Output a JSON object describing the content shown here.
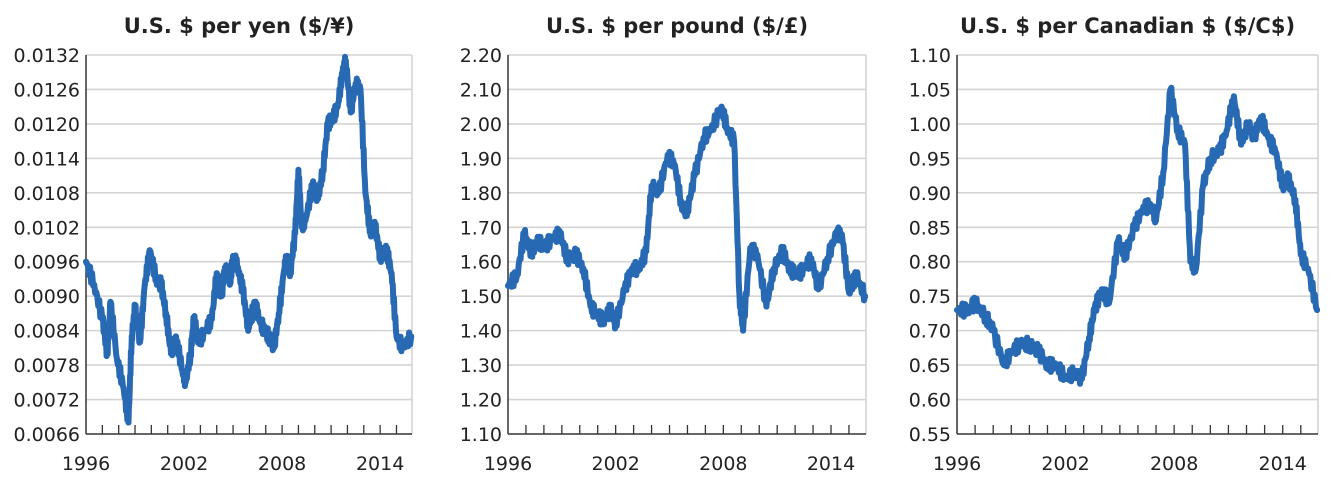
{
  "colors": {
    "line": "#2869b4",
    "grid": "#d4d4d4",
    "axis": "#333333"
  },
  "chart_data": [
    {
      "type": "line",
      "title": "U.S. $ per yen ($/¥)",
      "xlabel": "",
      "ylabel": "",
      "xlim": [
        1996,
        2015.95
      ],
      "ylim": [
        0.0066,
        0.0132
      ],
      "yticks": [
        "0.0066",
        "0.0072",
        "0.0078",
        "0.0084",
        "0.0090",
        "0.0096",
        "0.0102",
        "0.0108",
        "0.0114",
        "0.0120",
        "0.0126",
        "0.0132"
      ],
      "xticks": [
        "1996",
        "2002",
        "2008",
        "2014"
      ],
      "grid": true,
      "x": [
        1996.0,
        1996.5,
        1997.0,
        1997.3,
        1997.5,
        1997.9,
        1998.3,
        1998.6,
        1998.8,
        1999.0,
        1999.3,
        1999.6,
        1999.9,
        2000.3,
        2000.6,
        2000.9,
        2001.2,
        2001.5,
        2001.9,
        2002.1,
        2002.4,
        2002.6,
        2002.9,
        2003.3,
        2003.7,
        2004.0,
        2004.3,
        2004.5,
        2004.8,
        2005.0,
        2005.3,
        2005.6,
        2005.9,
        2006.1,
        2006.3,
        2006.6,
        2006.9,
        2007.2,
        2007.5,
        2007.8,
        2008.1,
        2008.3,
        2008.5,
        2008.8,
        2009.0,
        2009.2,
        2009.5,
        2009.9,
        2010.2,
        2010.5,
        2010.8,
        2011.1,
        2011.4,
        2011.7,
        2011.9,
        2012.2,
        2012.5,
        2012.8,
        2013.1,
        2013.4,
        2013.7,
        2014.0,
        2014.4,
        2014.7,
        2015.0,
        2015.4,
        2015.9
      ],
      "values": [
        0.0096,
        0.0092,
        0.0086,
        0.008,
        0.0089,
        0.0079,
        0.0074,
        0.0068,
        0.0083,
        0.0088,
        0.0082,
        0.0092,
        0.0098,
        0.0093,
        0.0092,
        0.0087,
        0.008,
        0.0083,
        0.0077,
        0.0075,
        0.008,
        0.0086,
        0.0082,
        0.0084,
        0.0086,
        0.0094,
        0.009,
        0.0095,
        0.0092,
        0.0097,
        0.0095,
        0.0091,
        0.0085,
        0.0086,
        0.0089,
        0.0086,
        0.0084,
        0.0083,
        0.0081,
        0.0087,
        0.0094,
        0.0097,
        0.0094,
        0.0101,
        0.0112,
        0.0102,
        0.0104,
        0.011,
        0.0107,
        0.0112,
        0.012,
        0.0121,
        0.0123,
        0.0129,
        0.0131,
        0.0122,
        0.0127,
        0.0126,
        0.0108,
        0.0101,
        0.0102,
        0.0097,
        0.0098,
        0.0094,
        0.0083,
        0.0081,
        0.0083
      ]
    },
    {
      "type": "line",
      "title": "U.S. $ per pound ($/£)",
      "xlabel": "",
      "ylabel": "",
      "xlim": [
        1996,
        2015.95
      ],
      "ylim": [
        1.1,
        2.2
      ],
      "yticks": [
        "1.10",
        "1.20",
        "1.30",
        "1.40",
        "1.50",
        "1.60",
        "1.70",
        "1.80",
        "1.90",
        "2.00",
        "2.10",
        "2.20"
      ],
      "xticks": [
        "1996",
        "2002",
        "2008",
        "2014"
      ],
      "grid": true,
      "x": [
        1996.0,
        1996.5,
        1996.9,
        1997.3,
        1997.7,
        1998.0,
        1998.5,
        1998.9,
        1999.3,
        1999.8,
        2000.2,
        2000.6,
        2000.9,
        2001.3,
        2001.7,
        2002.0,
        2002.5,
        2002.9,
        2003.3,
        2003.7,
        2004.0,
        2004.4,
        2004.9,
        2005.3,
        2005.7,
        2006.0,
        2006.4,
        2006.9,
        2007.3,
        2007.9,
        2008.2,
        2008.6,
        2008.9,
        2009.1,
        2009.5,
        2009.9,
        2010.4,
        2010.8,
        2011.3,
        2011.7,
        2012.1,
        2012.5,
        2012.9,
        2013.3,
        2013.8,
        2014.3,
        2014.6,
        2015.0,
        2015.4,
        2015.9
      ],
      "values": [
        1.53,
        1.56,
        1.68,
        1.63,
        1.66,
        1.64,
        1.67,
        1.68,
        1.61,
        1.62,
        1.58,
        1.47,
        1.45,
        1.43,
        1.46,
        1.42,
        1.52,
        1.58,
        1.58,
        1.63,
        1.82,
        1.8,
        1.91,
        1.88,
        1.75,
        1.75,
        1.85,
        1.96,
        1.98,
        2.05,
        1.99,
        1.95,
        1.5,
        1.4,
        1.64,
        1.62,
        1.47,
        1.58,
        1.63,
        1.58,
        1.56,
        1.58,
        1.61,
        1.52,
        1.61,
        1.68,
        1.68,
        1.51,
        1.56,
        1.5
      ]
    },
    {
      "type": "line",
      "title": "U.S. $ per Canadian $ ($/C$)",
      "xlabel": "",
      "ylabel": "",
      "xlim": [
        1996,
        2015.95
      ],
      "ylim": [
        0.55,
        1.1
      ],
      "yticks": [
        "0.55",
        "0.60",
        "0.65",
        "0.70",
        "0.75",
        "0.80",
        "0.85",
        "0.90",
        "0.95",
        "1.00",
        "1.05",
        "1.10"
      ],
      "xticks": [
        "1996",
        "2002",
        "2008",
        "2014"
      ],
      "grid": true,
      "x": [
        1996.0,
        1996.6,
        1997.0,
        1997.6,
        1998.0,
        1998.6,
        1999.0,
        1999.5,
        2000.0,
        2000.5,
        2001.0,
        2001.5,
        2002.0,
        2002.5,
        2002.9,
        2003.3,
        2003.6,
        2004.0,
        2004.4,
        2004.9,
        2005.3,
        2005.8,
        2006.3,
        2006.8,
        2007.0,
        2007.4,
        2007.8,
        2008.2,
        2008.6,
        2008.9,
        2009.2,
        2009.6,
        2010.0,
        2010.5,
        2010.9,
        2011.3,
        2011.7,
        2012.1,
        2012.4,
        2012.8,
        2013.2,
        2013.6,
        2014.0,
        2014.3,
        2014.7,
        2015.0,
        2015.4,
        2015.9
      ],
      "values": [
        0.73,
        0.73,
        0.74,
        0.72,
        0.7,
        0.65,
        0.67,
        0.68,
        0.68,
        0.67,
        0.65,
        0.65,
        0.63,
        0.64,
        0.63,
        0.69,
        0.73,
        0.76,
        0.74,
        0.83,
        0.81,
        0.85,
        0.88,
        0.88,
        0.86,
        0.93,
        1.05,
        0.99,
        0.97,
        0.8,
        0.79,
        0.91,
        0.95,
        0.96,
        0.99,
        1.04,
        0.97,
        1.0,
        0.98,
        1.01,
        0.98,
        0.96,
        0.91,
        0.92,
        0.89,
        0.81,
        0.79,
        0.73
      ]
    }
  ]
}
